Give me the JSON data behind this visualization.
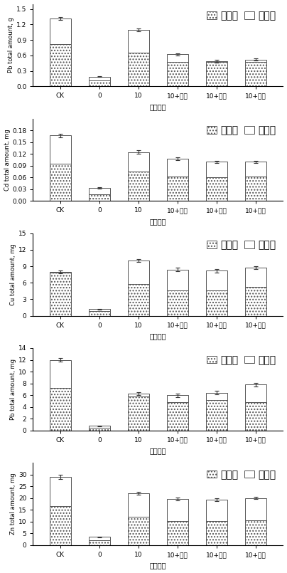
{
  "categories": [
    "CK",
    "0",
    "10",
    "10+胶粒",
    "10+蛭石",
    "10+蛋壳"
  ],
  "xlabel": "不同处理",
  "legend_labels": [
    "第一批",
    "第二批"
  ],
  "plots": [
    {
      "ylabel": "Pb total amount, g",
      "ylim": [
        0,
        1.6
      ],
      "yticks": [
        0,
        0.3,
        0.6,
        0.9,
        1.2,
        1.5
      ],
      "batch1": [
        0.82,
        0.12,
        0.65,
        0.48,
        0.47,
        0.48
      ],
      "batch2": [
        0.5,
        0.07,
        0.45,
        0.14,
        0.02,
        0.04
      ],
      "err_top": [
        0.03,
        0.008,
        0.025,
        0.025,
        0.025,
        0.025
      ],
      "total": [
        1.32,
        0.19,
        1.1,
        0.62,
        0.49,
        0.52
      ]
    },
    {
      "ylabel": "Cd total amount, mg",
      "ylim": [
        0,
        0.21
      ],
      "yticks": [
        0,
        0.03,
        0.06,
        0.09,
        0.12,
        0.15,
        0.18
      ],
      "batch1": [
        0.095,
        0.018,
        0.075,
        0.063,
        0.06,
        0.062
      ],
      "batch2": [
        0.072,
        0.015,
        0.05,
        0.045,
        0.04,
        0.038
      ],
      "err_top": [
        0.004,
        0.002,
        0.004,
        0.004,
        0.003,
        0.003
      ],
      "total": [
        0.167,
        0.033,
        0.125,
        0.108,
        0.1,
        0.1
      ]
    },
    {
      "ylabel": "Cu total amount, mg",
      "ylim": [
        0,
        15
      ],
      "yticks": [
        0,
        3,
        6,
        9,
        12,
        15
      ],
      "batch1": [
        7.8,
        0.8,
        5.8,
        4.6,
        4.6,
        5.2
      ],
      "batch2": [
        0.2,
        0.4,
        4.3,
        3.8,
        3.6,
        3.6
      ],
      "err_top": [
        0.25,
        0.07,
        0.25,
        0.3,
        0.3,
        0.25
      ],
      "total": [
        8.0,
        1.2,
        10.1,
        8.4,
        8.2,
        8.8
      ]
    },
    {
      "ylabel": "Pb total amount, mg",
      "ylim": [
        0,
        14
      ],
      "yticks": [
        0,
        2,
        4,
        6,
        8,
        10,
        12,
        14
      ],
      "batch1": [
        7.2,
        0.5,
        5.8,
        4.8,
        5.2,
        4.8
      ],
      "batch2": [
        4.8,
        0.3,
        0.5,
        1.2,
        1.2,
        3.0
      ],
      "err_top": [
        0.3,
        0.07,
        0.25,
        0.3,
        0.3,
        0.3
      ],
      "total": [
        12.0,
        0.8,
        6.3,
        6.0,
        6.4,
        7.8
      ]
    },
    {
      "ylabel": "Zn total amount, mg",
      "ylim": [
        0,
        35
      ],
      "yticks": [
        0,
        5,
        10,
        15,
        20,
        25,
        30
      ],
      "batch1": [
        16.5,
        2.0,
        12.0,
        10.2,
        10.2,
        10.5
      ],
      "batch2": [
        12.5,
        1.5,
        10.0,
        9.5,
        9.2,
        9.5
      ],
      "err_top": [
        0.8,
        0.15,
        0.5,
        0.6,
        0.6,
        0.5
      ],
      "total": [
        29.0,
        3.5,
        22.0,
        19.7,
        19.4,
        20.0
      ]
    }
  ],
  "bar_width": 0.55
}
